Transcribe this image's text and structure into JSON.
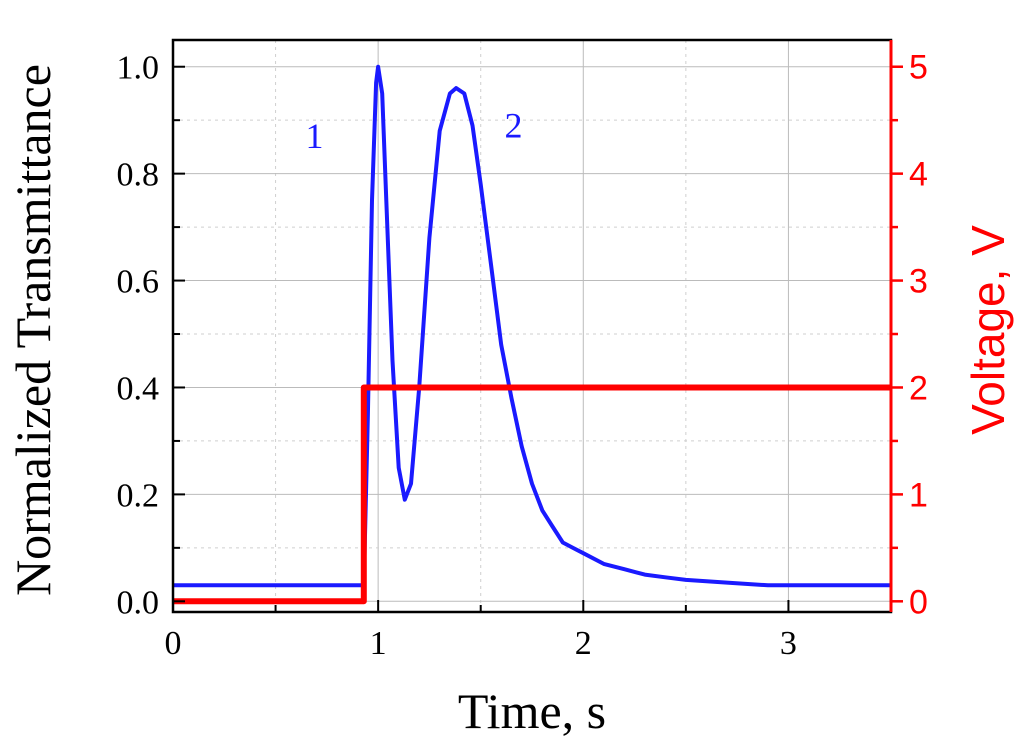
{
  "chart_data": {
    "type": "line",
    "xlabel": "Time, s",
    "ylabel_left": "Normalized Transmittance",
    "ylabel_right": "Voltage, V",
    "xlim": [
      0,
      3.5
    ],
    "ylim_left": [
      -0.02,
      1.05
    ],
    "ylim_right": [
      -0.1,
      5.25
    ],
    "x_ticks": [
      0,
      1,
      2,
      3
    ],
    "x_tick_labels": [
      "0",
      "1",
      "2",
      "3"
    ],
    "y_left_ticks": [
      0.0,
      0.2,
      0.4,
      0.6,
      0.8,
      1.0
    ],
    "y_left_tick_labels": [
      "0.0",
      "0.2",
      "0.4",
      "0.6",
      "0.8",
      "1.0"
    ],
    "y_right_ticks": [
      0,
      1,
      2,
      3,
      4,
      5
    ],
    "y_right_tick_labels": [
      "0",
      "1",
      "2",
      "3",
      "4",
      "5"
    ],
    "grid": true,
    "series": [
      {
        "axis": "left",
        "color": "#1a1aff",
        "x": [
          0,
          0.1,
          0.2,
          0.3,
          0.4,
          0.5,
          0.6,
          0.7,
          0.8,
          0.9,
          0.93,
          0.95,
          0.97,
          0.99,
          1.0,
          1.02,
          1.04,
          1.07,
          1.1,
          1.13,
          1.16,
          1.2,
          1.25,
          1.3,
          1.35,
          1.38,
          1.42,
          1.46,
          1.5,
          1.55,
          1.6,
          1.65,
          1.7,
          1.75,
          1.8,
          1.85,
          1.9,
          1.95,
          2.0,
          2.1,
          2.2,
          2.3,
          2.4,
          2.5,
          2.7,
          2.9,
          3.1,
          3.3,
          3.5
        ],
        "values": [
          0.03,
          0.03,
          0.03,
          0.03,
          0.03,
          0.03,
          0.03,
          0.03,
          0.03,
          0.03,
          0.03,
          0.35,
          0.75,
          0.97,
          1.0,
          0.95,
          0.75,
          0.45,
          0.25,
          0.19,
          0.22,
          0.4,
          0.68,
          0.88,
          0.95,
          0.96,
          0.95,
          0.89,
          0.78,
          0.63,
          0.48,
          0.38,
          0.29,
          0.22,
          0.17,
          0.14,
          0.11,
          0.1,
          0.09,
          0.07,
          0.06,
          0.05,
          0.045,
          0.04,
          0.035,
          0.03,
          0.03,
          0.03,
          0.03
        ]
      },
      {
        "axis": "right",
        "color": "#ff0000",
        "x": [
          0,
          0.93,
          0.93,
          3.5
        ],
        "values": [
          0,
          0,
          2,
          2
        ]
      }
    ],
    "annotations": [
      {
        "text": "1",
        "x": 0.69,
        "y": 0.87
      },
      {
        "text": "2",
        "x": 1.66,
        "y": 0.89
      }
    ]
  }
}
